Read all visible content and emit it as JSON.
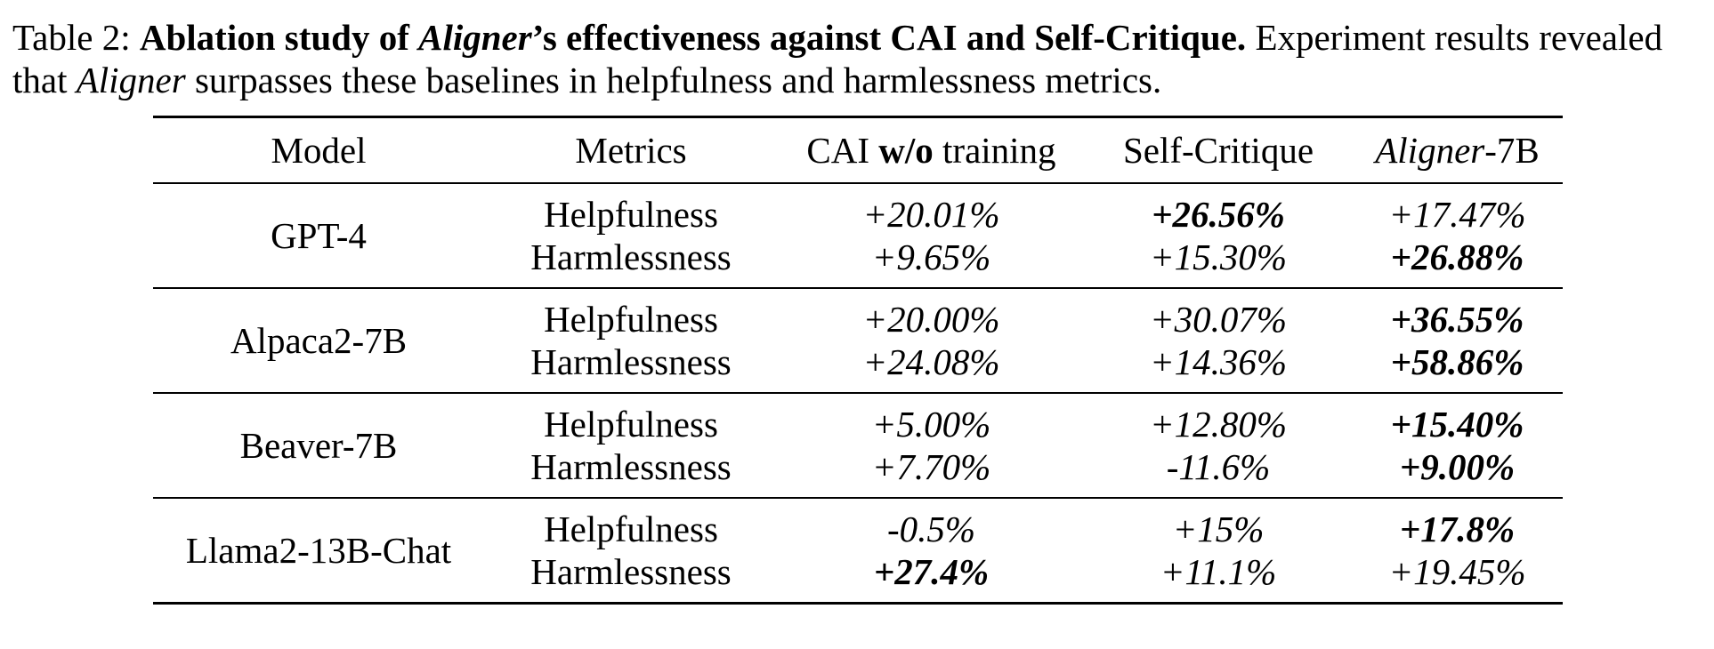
{
  "caption": {
    "label": "Table 2:",
    "bold_a": "Ablation study of",
    "bold_italic": "Aligner",
    "bold_b": "’s effectiveness against CAI and Self-Critique.",
    "rest_a": "Experiment results revealed that",
    "italic": "Aligner",
    "rest_b": "surpasses these baselines in helpfulness and harmlessness metrics."
  },
  "headers": {
    "model": "Model",
    "metrics": "Metrics",
    "cai_a": "CAI",
    "cai_bold": "w/o",
    "cai_b": "training",
    "self": "Self-Critique",
    "aligner_italic": "Aligner",
    "aligner_suffix": "-7B"
  },
  "rows": [
    {
      "model": "GPT-4",
      "metrics": [
        "Helpfulness",
        "Harmlessness"
      ],
      "cai": [
        "+20.01%",
        "+9.65%"
      ],
      "self": [
        "+26.56%",
        "+15.30%"
      ],
      "aligner": [
        "+17.47%",
        "+26.88%"
      ]
    },
    {
      "model": "Alpaca2-7B",
      "metrics": [
        "Helpfulness",
        "Harmlessness"
      ],
      "cai": [
        "+20.00%",
        "+24.08%"
      ],
      "self": [
        "+30.07%",
        "+14.36%"
      ],
      "aligner": [
        "+36.55%",
        "+58.86%"
      ]
    },
    {
      "model": "Beaver-7B",
      "metrics": [
        "Helpfulness",
        "Harmlessness"
      ],
      "cai": [
        "+5.00%",
        "+7.70%"
      ],
      "self": [
        "+12.80%",
        "-11.6%"
      ],
      "aligner": [
        "+15.40%",
        "+9.00%"
      ]
    },
    {
      "model": "Llama2-13B-Chat",
      "metrics": [
        "Helpfulness",
        "Harmlessness"
      ],
      "cai": [
        "-0.5%",
        "+27.4%"
      ],
      "self": [
        "+15%",
        "+11.1%"
      ],
      "aligner": [
        "+17.8%",
        "+19.45%"
      ]
    }
  ]
}
